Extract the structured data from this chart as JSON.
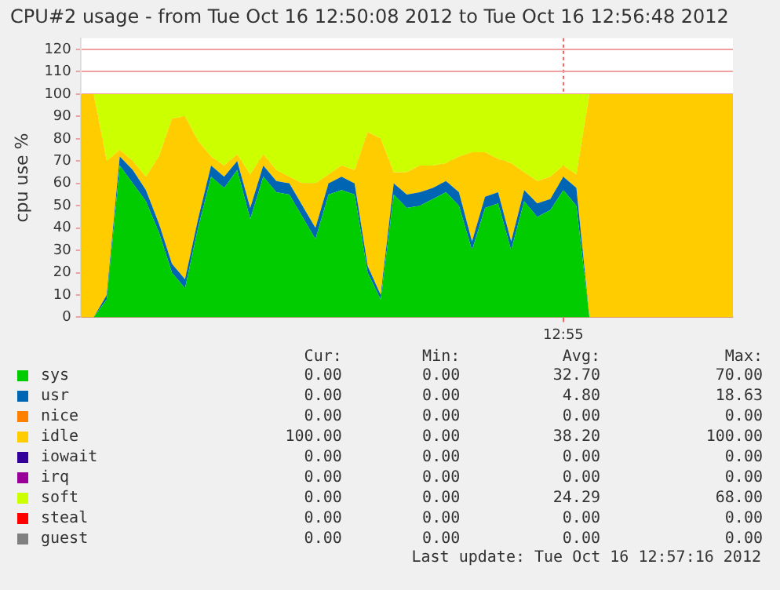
{
  "chart_data": {
    "type": "area",
    "stacked": true,
    "title": "CPU#2 usage - from Tue Oct 16 12:50:08 2012 to Tue Oct 16 12:56:48 2012",
    "ylabel": "cpu use %",
    "categories": [
      null,
      null,
      null,
      null,
      null,
      null,
      null,
      null,
      null,
      null,
      null,
      null,
      null,
      null,
      null,
      null,
      null,
      null,
      null,
      null,
      null,
      null,
      null,
      null,
      null,
      null,
      null,
      null,
      null,
      null,
      null,
      null,
      null,
      null,
      null,
      null,
      null,
      "12:55",
      null,
      null,
      null,
      null,
      null,
      null,
      null,
      null,
      null,
      null,
      null,
      null,
      null
    ],
    "ylim": [
      0,
      125
    ],
    "yticks": [
      0,
      10,
      20,
      30,
      40,
      50,
      60,
      70,
      80,
      90,
      100,
      110,
      120
    ],
    "grid": true,
    "legend": "bottom",
    "series": [
      {
        "name": "sys",
        "color": "#00cc00",
        "values": [
          0,
          0,
          8,
          68,
          60,
          52,
          38,
          20,
          13,
          40,
          63,
          58,
          66,
          44,
          63,
          56,
          55,
          45,
          35,
          55,
          57,
          55,
          20,
          8,
          55,
          49,
          50,
          53,
          56,
          50,
          30,
          49,
          51,
          30,
          52,
          45,
          48,
          57,
          50,
          0,
          0,
          0,
          0,
          0,
          0,
          0,
          0,
          0,
          0,
          0,
          0
        ]
      },
      {
        "name": "usr",
        "color": "#0066b3",
        "values": [
          0,
          0,
          2,
          4,
          6,
          5,
          4,
          4,
          4,
          4,
          5,
          5,
          4,
          5,
          5,
          5,
          5,
          5,
          5,
          5,
          6,
          5,
          3,
          2,
          5,
          6,
          6,
          5,
          5,
          6,
          4,
          5,
          5,
          4,
          5,
          6,
          5,
          6,
          8,
          0,
          0,
          0,
          0,
          0,
          0,
          0,
          0,
          0,
          0,
          0,
          0
        ]
      },
      {
        "name": "nice",
        "color": "#ff8000",
        "values": [
          null,
          null,
          null,
          null,
          null,
          null,
          null,
          null,
          null,
          null,
          null,
          null,
          null,
          null,
          null,
          null,
          null,
          null,
          null,
          null,
          null,
          null,
          null,
          null,
          null,
          null,
          null,
          null,
          null,
          null,
          null,
          null,
          null,
          null,
          null,
          null,
          null,
          null,
          null,
          null,
          null,
          null,
          null,
          null,
          null,
          null,
          null,
          null,
          null,
          null,
          null
        ]
      },
      {
        "name": "idle",
        "color": "#ffcc00",
        "values": [
          100,
          100,
          60,
          3,
          4,
          6,
          30,
          65,
          73,
          35,
          4,
          5,
          3,
          15,
          5,
          5,
          3,
          10,
          20,
          4,
          5,
          6,
          60,
          70,
          5,
          10,
          12,
          10,
          8,
          16,
          40,
          20,
          15,
          35,
          8,
          10,
          10,
          5,
          6,
          100,
          100,
          100,
          100,
          100,
          100,
          100,
          100,
          100,
          100,
          100,
          100
        ]
      },
      {
        "name": "iowait",
        "color": "#330099",
        "values": [
          null,
          null,
          null,
          null,
          null,
          null,
          null,
          null,
          null,
          null,
          null,
          null,
          null,
          null,
          null,
          null,
          null,
          null,
          null,
          null,
          null,
          null,
          null,
          null,
          null,
          null,
          null,
          null,
          null,
          null,
          null,
          null,
          null,
          null,
          null,
          null,
          null,
          null,
          null,
          null,
          null,
          null,
          null,
          null,
          null,
          null,
          null,
          null,
          null,
          null,
          null
        ]
      },
      {
        "name": "irq",
        "color": "#990099",
        "values": [
          null,
          null,
          null,
          null,
          null,
          null,
          null,
          null,
          null,
          null,
          null,
          null,
          null,
          null,
          null,
          null,
          null,
          null,
          null,
          null,
          null,
          null,
          null,
          null,
          null,
          null,
          null,
          null,
          null,
          null,
          null,
          null,
          null,
          null,
          null,
          null,
          null,
          null,
          null,
          null,
          null,
          null,
          null,
          null,
          null,
          null,
          null,
          null,
          null,
          null,
          null
        ]
      },
      {
        "name": "soft",
        "color": "#ccff00",
        "values": [
          0,
          0,
          30,
          25,
          30,
          37,
          28,
          11,
          10,
          21,
          28,
          32,
          27,
          36,
          27,
          34,
          37,
          40,
          40,
          36,
          32,
          34,
          17,
          20,
          35,
          35,
          32,
          32,
          31,
          28,
          26,
          26,
          29,
          31,
          35,
          39,
          37,
          32,
          36,
          0,
          0,
          0,
          0,
          0,
          0,
          0,
          0,
          0,
          0,
          0,
          0
        ]
      },
      {
        "name": "steal",
        "color": "#ff0000",
        "values": [
          null,
          null,
          null,
          null,
          null,
          null,
          null,
          null,
          null,
          null,
          null,
          null,
          null,
          null,
          null,
          null,
          null,
          null,
          null,
          null,
          null,
          null,
          null,
          null,
          null,
          null,
          null,
          null,
          null,
          null,
          null,
          null,
          null,
          null,
          null,
          null,
          null,
          null,
          null,
          null,
          null,
          null,
          null,
          null,
          null,
          null,
          null,
          null,
          null,
          null,
          null
        ]
      },
      {
        "name": "guest",
        "color": "#808080",
        "values": [
          null,
          null,
          null,
          null,
          null,
          null,
          null,
          null,
          null,
          null,
          null,
          null,
          null,
          null,
          null,
          null,
          null,
          null,
          null,
          null,
          null,
          null,
          null,
          null,
          null,
          null,
          null,
          null,
          null,
          null,
          null,
          null,
          null,
          null,
          null,
          null,
          null,
          null,
          null,
          null,
          null,
          null,
          null,
          null,
          null,
          null,
          null,
          null,
          null,
          null,
          null
        ]
      }
    ],
    "annotations": [
      "Cur:",
      "Min:",
      "Avg:",
      "Max:",
      "0.00",
      "0.00",
      "32.70",
      "70.00",
      "0.00",
      "0.00",
      "4.80",
      "18.63",
      "0.00",
      "0.00",
      "0.00",
      "0.00",
      "100.00",
      "0.00",
      "38.20",
      "100.00",
      "0.00",
      "0.00",
      "0.00",
      "0.00",
      "0.00",
      "0.00",
      "0.00",
      "0.00",
      "0.00",
      "0.00",
      "24.29",
      "68.00",
      "0.00",
      "0.00",
      "0.00",
      "0.00",
      "0.00",
      "0.00",
      "0.00",
      "0.00",
      "Last update: Tue Oct 16 12:57:16 2012"
    ]
  }
}
